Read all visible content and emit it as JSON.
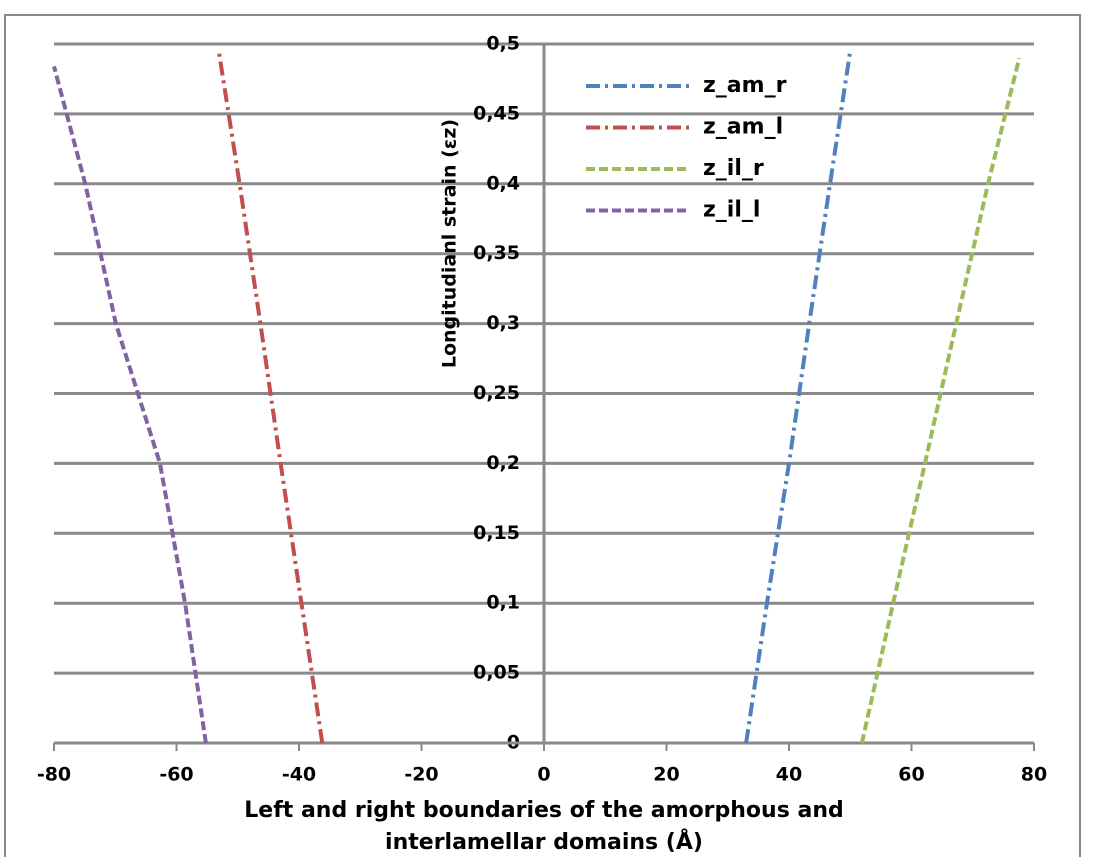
{
  "chart_data": {
    "type": "line",
    "y_label": "Longitudianl strain (εz)",
    "x_label": "Left and right boundaries of the amorphous and interlamellar domains (Å)",
    "xlim": [
      -80,
      80
    ],
    "xticks": [
      -80,
      -60,
      -40,
      -20,
      0,
      20,
      40,
      60,
      80
    ],
    "ylim": [
      0,
      0.5
    ],
    "yticks": [
      0,
      {
        "value": 0.05,
        "label": "0,05"
      },
      {
        "value": 0.1,
        "label": "0,1"
      },
      {
        "value": 0.15,
        "label": "0,15"
      },
      {
        "value": 0.2,
        "label": "0,2"
      },
      {
        "value": 0.25,
        "label": "0,25"
      },
      {
        "value": 0.3,
        "label": "0,3"
      },
      {
        "value": 0.35,
        "label": "0,35"
      },
      {
        "value": 0.4,
        "label": "0,4"
      },
      {
        "value": 0.45,
        "label": "0,45"
      },
      {
        "value": 0.5,
        "label": "0,5"
      }
    ],
    "grid": true,
    "legend": "top-right",
    "series": [
      {
        "name": "z_am_r",
        "color": "#4f81bd",
        "dash": "dashdot",
        "x": [
          33,
          36.4,
          40,
          43.3,
          46.7,
          50
        ],
        "values": [
          0,
          0.1,
          0.2,
          0.3,
          0.4,
          0.495
        ]
      },
      {
        "name": "z_am_l",
        "color": "#c0504d",
        "dash": "dashdot",
        "x": [
          -36.2,
          -39.6,
          -43,
          -46.3,
          -49.7,
          -53.1
        ],
        "values": [
          0,
          0.1,
          0.2,
          0.3,
          0.4,
          0.495
        ]
      },
      {
        "name": "z_il_r",
        "color": "#9bbb59",
        "dash": "dash",
        "x": [
          51.9,
          57,
          62.2,
          67.3,
          72.5,
          77.6
        ],
        "values": [
          0,
          0.1,
          0.2,
          0.3,
          0.4,
          0.49
        ]
      },
      {
        "name": "z_il_l",
        "color": "#8064a2",
        "dash": "dash",
        "x": [
          -55.2,
          -58.6,
          -62.7,
          -69.9,
          -74.9,
          -80
        ],
        "values": [
          0,
          0.1,
          0.2,
          0.3,
          0.4,
          0.484
        ]
      }
    ]
  }
}
